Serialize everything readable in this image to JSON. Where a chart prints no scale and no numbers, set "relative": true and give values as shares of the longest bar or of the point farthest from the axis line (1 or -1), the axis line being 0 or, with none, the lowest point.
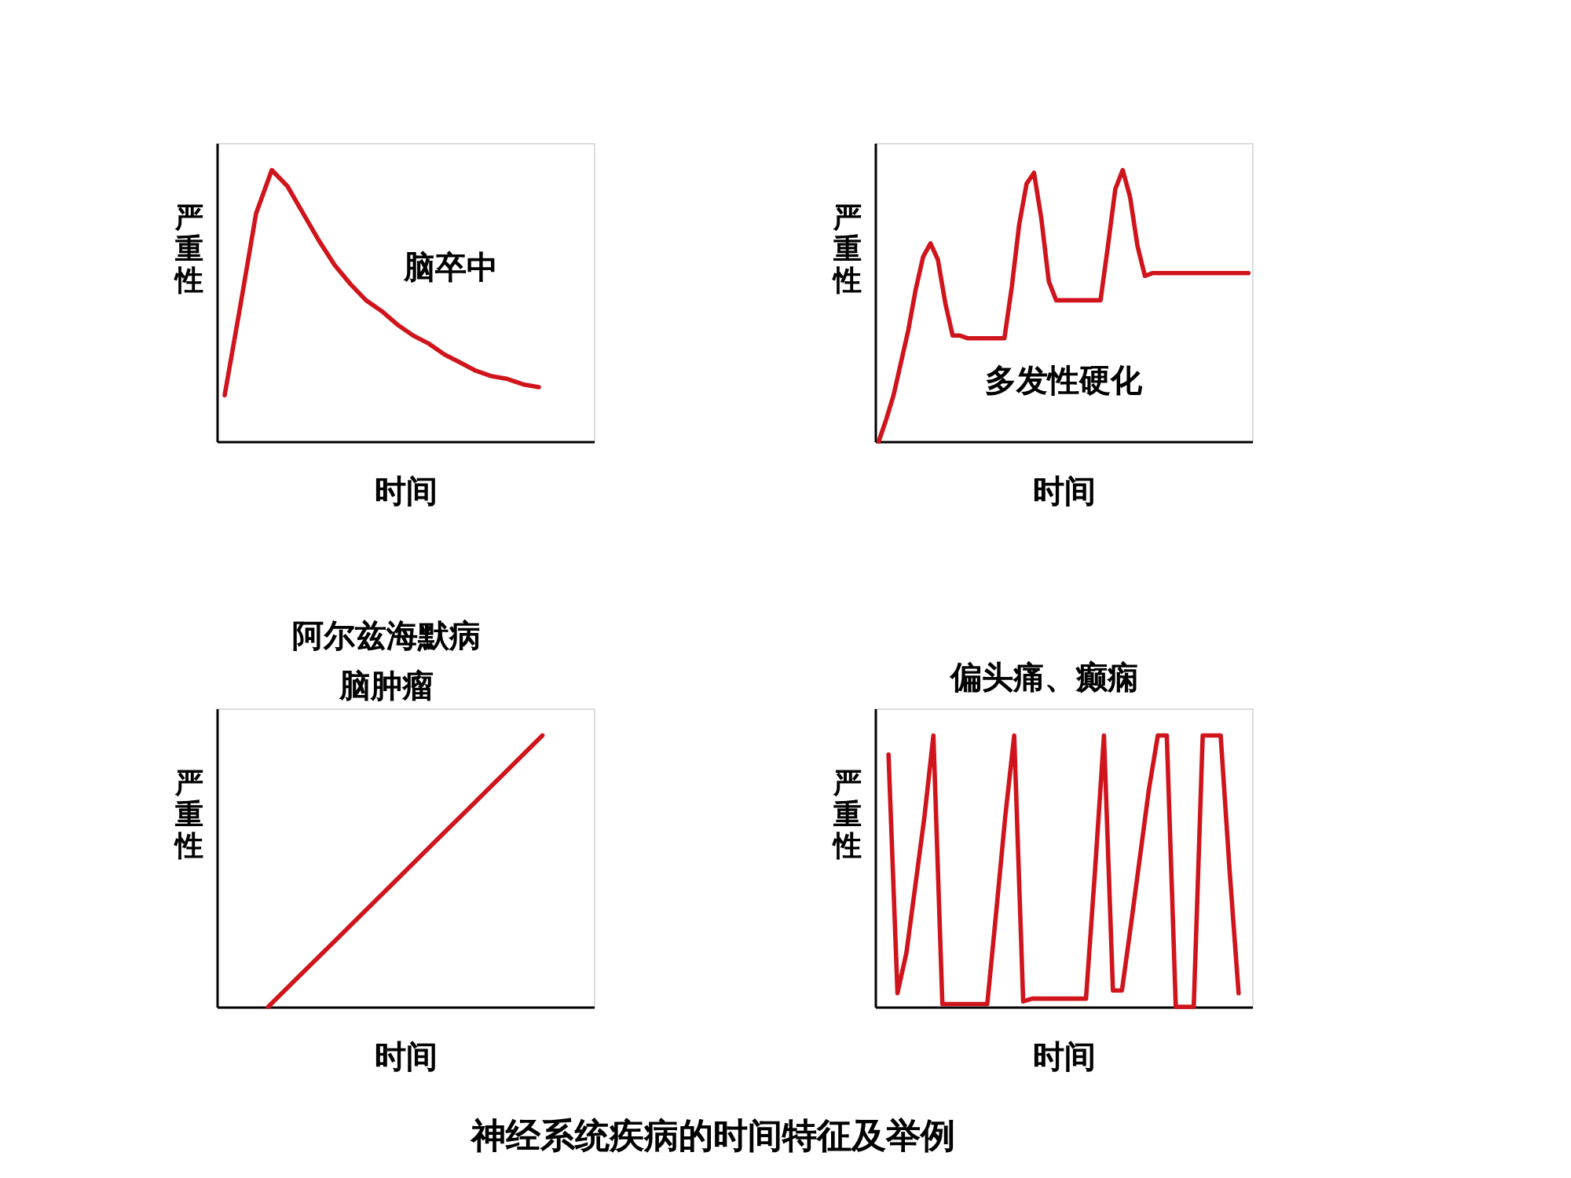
{
  "chart_data": [
    {
      "type": "line",
      "relative": true,
      "xlabel": "时间",
      "ylabel": "严重性",
      "annotations": [
        "脑卒中"
      ],
      "categories": [
        null,
        null,
        null,
        null,
        null,
        null,
        null,
        null,
        null,
        null,
        null,
        null,
        null,
        null,
        null,
        null,
        null,
        null,
        null,
        null,
        null,
        null,
        null,
        null
      ],
      "series": [
        {
          "color": "#d0141c",
          "values": [
            0.17,
            0.5,
            0.84,
            1.0,
            0.94,
            0.84,
            0.74,
            0.65,
            0.58,
            0.52,
            0.48,
            0.43,
            0.39,
            0.36,
            0.32,
            0.29,
            0.26,
            0.24,
            0.23,
            0.21,
            0.2,
            null,
            null,
            null
          ]
        }
      ]
    },
    {
      "type": "line",
      "relative": true,
      "xlabel": "时间",
      "ylabel": "严重性",
      "annotations": [
        "多发性硬化"
      ],
      "categories": [
        null,
        null,
        null,
        null,
        null,
        null,
        null,
        null,
        null,
        null,
        null,
        null,
        null,
        null,
        null,
        null,
        null,
        null,
        null,
        null,
        null,
        null,
        null,
        null,
        null,
        null,
        null,
        null,
        null,
        null,
        null,
        null,
        null,
        null,
        null,
        null,
        null,
        null,
        null,
        null,
        null,
        null,
        null,
        null,
        null,
        null,
        null,
        null,
        null,
        null,
        null
      ],
      "series": [
        {
          "color": "#d0141c",
          "values": [
            0,
            0.08,
            0.17,
            0.29,
            0.41,
            0.56,
            0.68,
            0.73,
            0.67,
            0.51,
            0.39,
            0.39,
            0.38,
            0.38,
            0.38,
            0.38,
            0.38,
            0.38,
            0.57,
            0.8,
            0.95,
            0.99,
            0.82,
            0.59,
            0.52,
            0.52,
            0.52,
            0.52,
            0.52,
            0.52,
            0.52,
            0.72,
            0.93,
            1.0,
            0.9,
            0.72,
            0.61,
            0.62,
            0.62,
            0.62,
            0.62,
            0.62,
            0.62,
            0.62,
            0.62,
            0.62,
            0.62,
            0.62,
            0.62,
            0.62,
            0.62
          ]
        }
      ]
    },
    {
      "type": "line",
      "relative": true,
      "xlabel": "时间",
      "ylabel": "严重性",
      "annotations": [
        "阿尔兹海默病",
        "脑肿瘤"
      ],
      "categories": [
        null,
        null,
        null,
        null,
        null,
        null,
        null,
        null,
        null,
        null,
        null
      ],
      "series": [
        {
          "color": "#d0141c",
          "values": [
            null,
            0,
            0.125,
            0.25,
            0.375,
            0.5,
            0.625,
            0.75,
            0.875,
            1.0,
            null
          ]
        }
      ]
    },
    {
      "type": "line",
      "relative": true,
      "xlabel": "时间",
      "ylabel": "严重性",
      "annotations": [
        "偏头痛、癫痫"
      ],
      "title": "神经系统疾病的时间特征及举例",
      "categories": [
        null,
        null,
        null,
        null,
        null,
        null,
        null,
        null,
        null,
        null,
        null,
        null,
        null,
        null,
        null,
        null,
        null,
        null,
        null,
        null,
        null,
        null,
        null,
        null,
        null,
        null,
        null,
        null,
        null,
        null,
        null,
        null,
        null,
        null,
        null,
        null,
        null,
        null,
        null,
        null,
        null,
        null
      ],
      "series": [
        {
          "color": "#d0141c",
          "values": [
            null,
            0.93,
            0.05,
            0.2,
            0.45,
            0.7,
            1.0,
            0.01,
            0.01,
            0.01,
            0.01,
            0.01,
            0.01,
            0.35,
            0.7,
            1.0,
            0.02,
            0.03,
            0.03,
            0.03,
            0.03,
            0.03,
            0.03,
            0.03,
            0.5,
            1.0,
            0.06,
            0.06,
            0.3,
            0.55,
            0.8,
            1.0,
            1.0,
            0,
            0,
            0,
            1.0,
            1.0,
            1.0,
            0.5,
            0.05,
            null
          ]
        }
      ]
    }
  ]
}
